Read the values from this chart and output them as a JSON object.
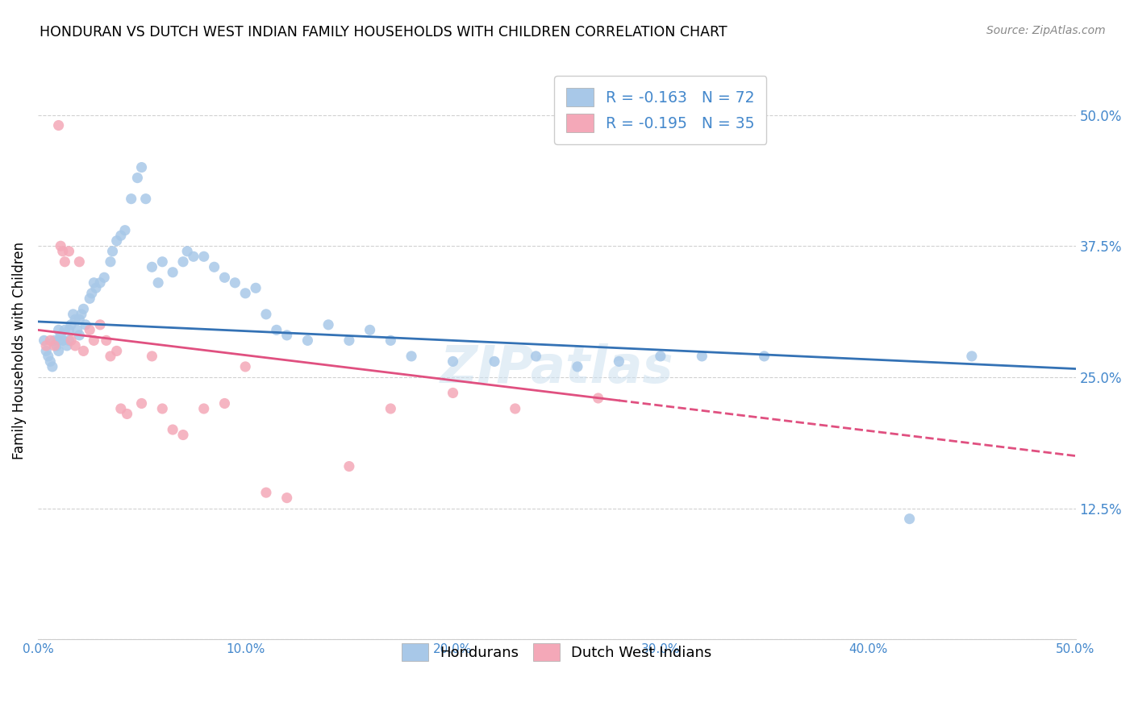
{
  "title": "HONDURAN VS DUTCH WEST INDIAN FAMILY HOUSEHOLDS WITH CHILDREN CORRELATION CHART",
  "source": "Source: ZipAtlas.com",
  "ylabel": "Family Households with Children",
  "xlim": [
    0.0,
    0.5
  ],
  "ylim": [
    0.0,
    0.55
  ],
  "xticks": [
    0.0,
    0.1,
    0.2,
    0.3,
    0.4,
    0.5
  ],
  "xtick_labels": [
    "0.0%",
    "10.0%",
    "20.0%",
    "30.0%",
    "40.0%",
    "50.0%"
  ],
  "yticks": [
    0.0,
    0.125,
    0.25,
    0.375,
    0.5
  ],
  "ytick_labels": [
    "",
    "12.5%",
    "25.0%",
    "37.5%",
    "50.0%"
  ],
  "legend1_label": "R = -0.163   N = 72",
  "legend2_label": "R = -0.195   N = 35",
  "legend_hondurans": "Hondurans",
  "legend_dutch": "Dutch West Indians",
  "blue_scatter_color": "#a8c8e8",
  "pink_scatter_color": "#f4a8b8",
  "blue_line_color": "#3472b5",
  "pink_line_color": "#e05080",
  "tick_color": "#4488cc",
  "honduran_x": [
    0.003,
    0.004,
    0.005,
    0.006,
    0.007,
    0.008,
    0.009,
    0.01,
    0.01,
    0.01,
    0.011,
    0.012,
    0.013,
    0.014,
    0.015,
    0.015,
    0.016,
    0.017,
    0.018,
    0.019,
    0.02,
    0.02,
    0.021,
    0.022,
    0.023,
    0.025,
    0.026,
    0.027,
    0.028,
    0.03,
    0.032,
    0.035,
    0.036,
    0.038,
    0.04,
    0.042,
    0.045,
    0.048,
    0.05,
    0.052,
    0.055,
    0.058,
    0.06,
    0.065,
    0.07,
    0.072,
    0.075,
    0.08,
    0.085,
    0.09,
    0.095,
    0.1,
    0.105,
    0.11,
    0.115,
    0.12,
    0.13,
    0.14,
    0.15,
    0.16,
    0.17,
    0.18,
    0.2,
    0.22,
    0.24,
    0.26,
    0.28,
    0.3,
    0.32,
    0.35,
    0.42,
    0.45
  ],
  "honduran_y": [
    0.285,
    0.275,
    0.27,
    0.265,
    0.26,
    0.285,
    0.28,
    0.295,
    0.285,
    0.275,
    0.29,
    0.285,
    0.295,
    0.28,
    0.295,
    0.285,
    0.3,
    0.31,
    0.305,
    0.295,
    0.305,
    0.29,
    0.31,
    0.315,
    0.3,
    0.325,
    0.33,
    0.34,
    0.335,
    0.34,
    0.345,
    0.36,
    0.37,
    0.38,
    0.385,
    0.39,
    0.42,
    0.44,
    0.45,
    0.42,
    0.355,
    0.34,
    0.36,
    0.35,
    0.36,
    0.37,
    0.365,
    0.365,
    0.355,
    0.345,
    0.34,
    0.33,
    0.335,
    0.31,
    0.295,
    0.29,
    0.285,
    0.3,
    0.285,
    0.295,
    0.285,
    0.27,
    0.265,
    0.265,
    0.27,
    0.26,
    0.265,
    0.27,
    0.27,
    0.27,
    0.115,
    0.27
  ],
  "dutch_x": [
    0.004,
    0.006,
    0.008,
    0.01,
    0.011,
    0.012,
    0.013,
    0.015,
    0.016,
    0.018,
    0.02,
    0.022,
    0.025,
    0.027,
    0.03,
    0.033,
    0.035,
    0.038,
    0.04,
    0.043,
    0.05,
    0.055,
    0.06,
    0.065,
    0.07,
    0.08,
    0.09,
    0.1,
    0.11,
    0.12,
    0.15,
    0.17,
    0.2,
    0.23,
    0.27
  ],
  "dutch_y": [
    0.28,
    0.285,
    0.28,
    0.49,
    0.375,
    0.37,
    0.36,
    0.37,
    0.285,
    0.28,
    0.36,
    0.275,
    0.295,
    0.285,
    0.3,
    0.285,
    0.27,
    0.275,
    0.22,
    0.215,
    0.225,
    0.27,
    0.22,
    0.2,
    0.195,
    0.22,
    0.225,
    0.26,
    0.14,
    0.135,
    0.165,
    0.22,
    0.235,
    0.22,
    0.23
  ],
  "blue_trend_x0": 0.0,
  "blue_trend_y0": 0.303,
  "blue_trend_x1": 0.5,
  "blue_trend_y1": 0.258,
  "pink_trend_x0": 0.0,
  "pink_trend_y0": 0.295,
  "pink_trend_x1": 0.5,
  "pink_trend_y1": 0.175
}
